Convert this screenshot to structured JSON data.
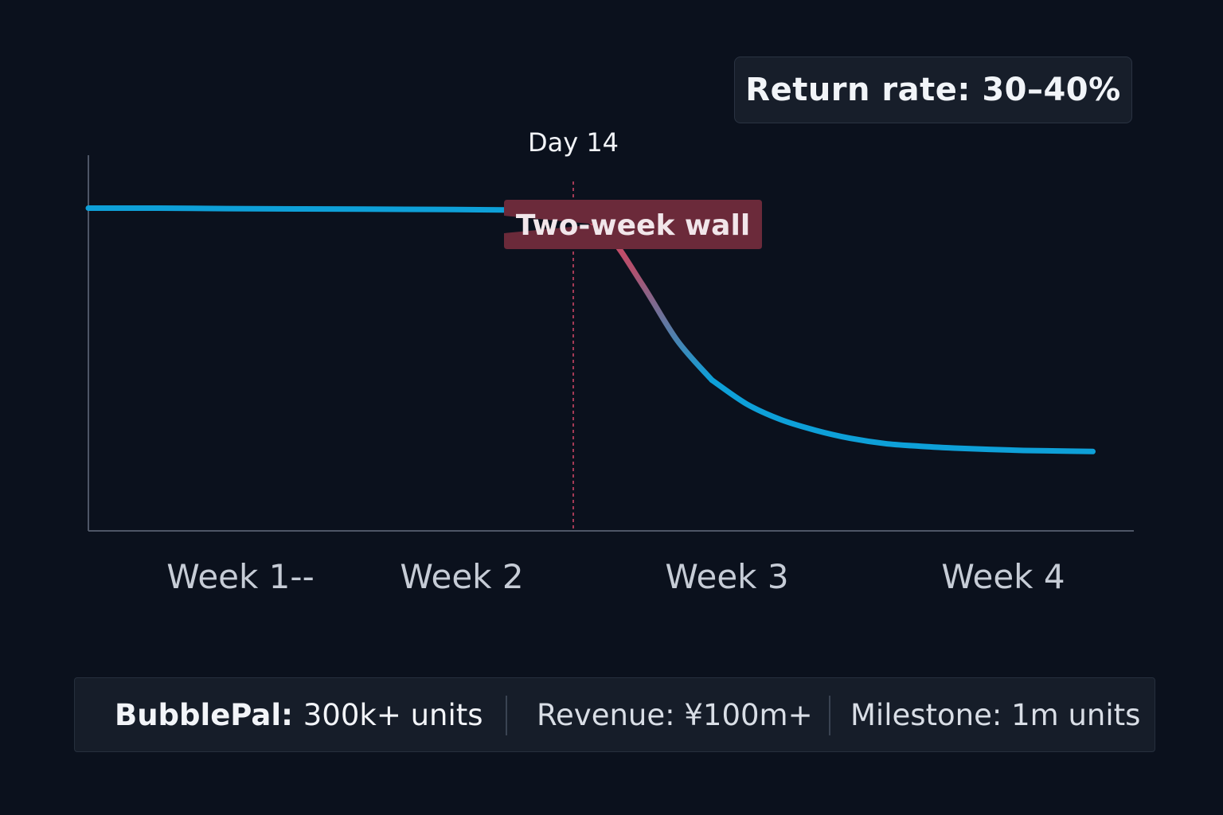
{
  "chart_data": {
    "type": "line",
    "x_categories": [
      "Week 1--",
      "Week 2",
      "Week 3",
      "Week 4"
    ],
    "annotation_day": 14,
    "annotation_day_label": "Day 14",
    "callout_label": "Two-week wall",
    "series": [
      {
        "points": [
          [
            0,
            100
          ],
          [
            2,
            100
          ],
          [
            4,
            99.8
          ],
          [
            6,
            99.7
          ],
          [
            8,
            99.6
          ],
          [
            10,
            99.5
          ],
          [
            12,
            99.3
          ],
          [
            14,
            98.5
          ],
          [
            15,
            90
          ],
          [
            16,
            71
          ],
          [
            17,
            50
          ],
          [
            18,
            35
          ],
          [
            19,
            26
          ],
          [
            20,
            20
          ],
          [
            21,
            16
          ],
          [
            22,
            13
          ],
          [
            23,
            11
          ],
          [
            24,
            10
          ],
          [
            25,
            9.3
          ],
          [
            26,
            8.8
          ],
          [
            27,
            8.4
          ],
          [
            28,
            8.2
          ],
          [
            29,
            8
          ]
        ]
      }
    ],
    "x_range": [
      0,
      30
    ],
    "y_range": [
      -22,
      120
    ],
    "grid": false,
    "colors": {
      "line": "#0ea0d8",
      "drop_accent": "#e2455e",
      "marker_line": "#a43a55",
      "callout_bg": "#6b2a3a",
      "axis": "#5a6272",
      "tick_label": "#c6ccd6"
    }
  },
  "return_badge": {
    "text": "Return rate: 30–40%"
  },
  "stats": {
    "product_label": "BubblePal:",
    "product_value": "300k+ units",
    "revenue": "Revenue: ¥100m+",
    "milestone": "Milestone: 1m units"
  }
}
